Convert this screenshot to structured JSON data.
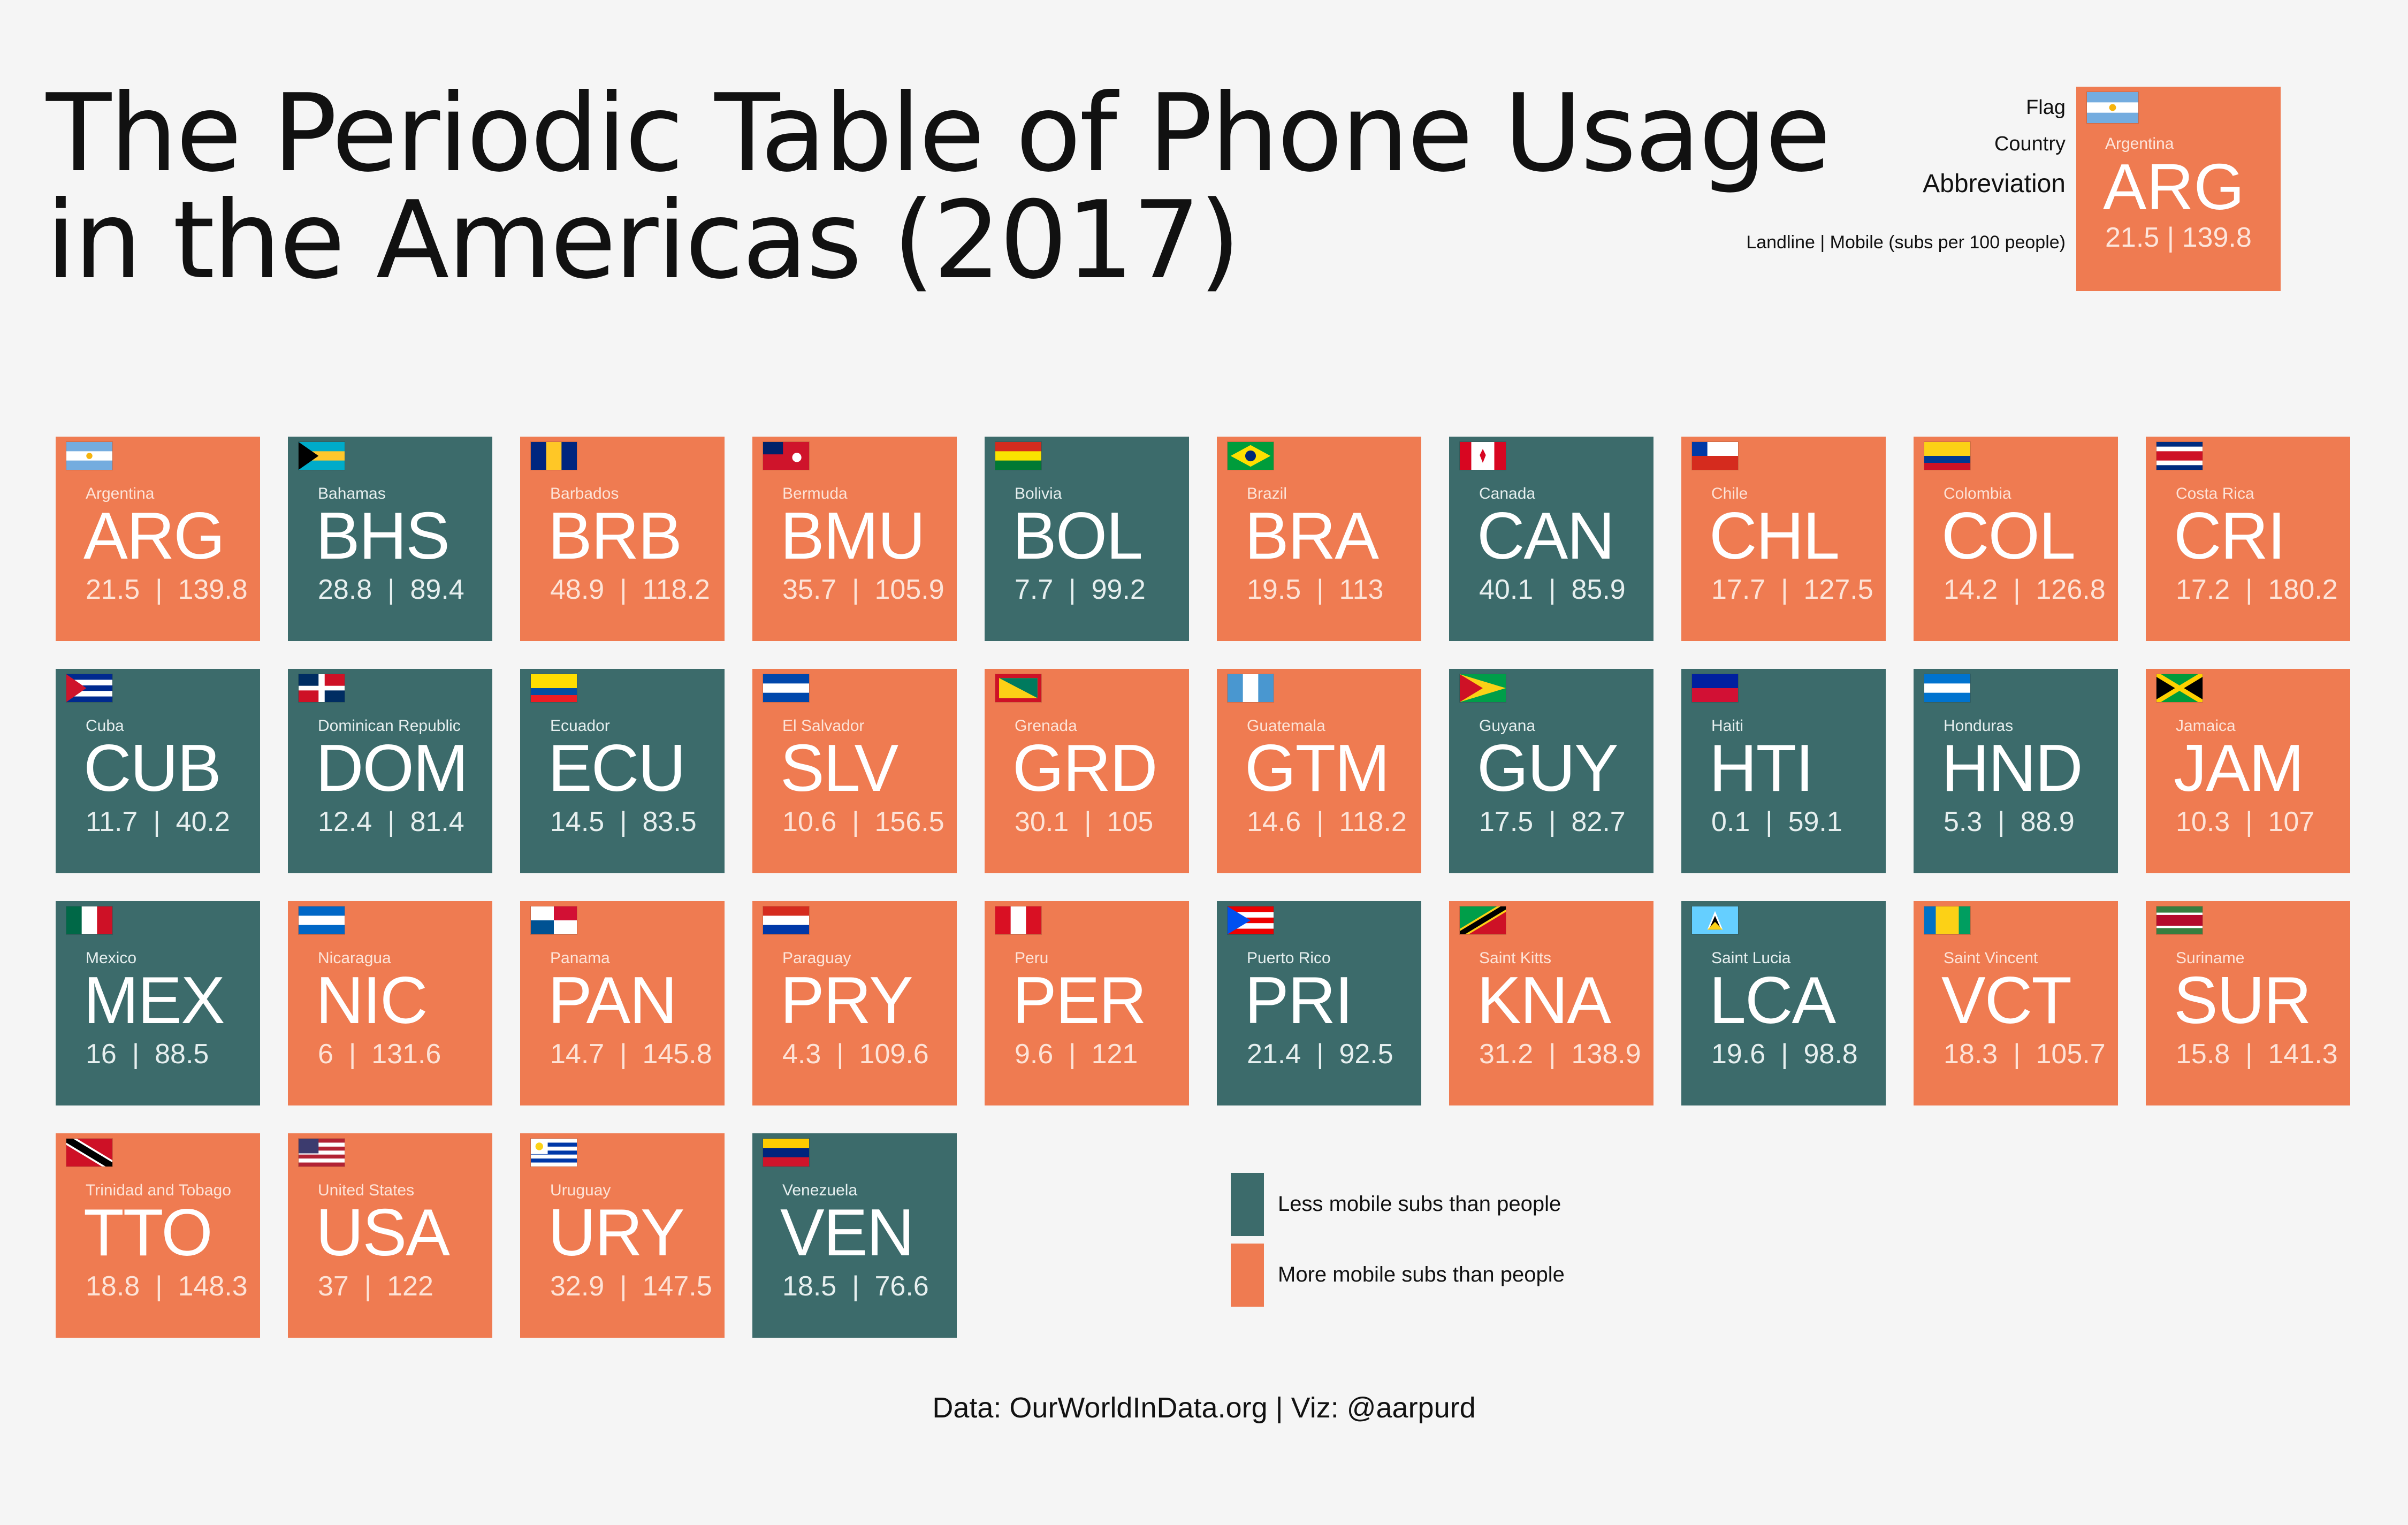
{
  "title_lines": [
    "The Periodic Table of Phone Usage",
    "in the Americas (2017)"
  ],
  "key": {
    "flag_label": "Flag",
    "country_label": "Country",
    "abbreviation_label": "Abbreviation",
    "values_label": "Landline  |  Mobile (subs per 100 people)",
    "example": {
      "country": "Argentina",
      "code": "ARG",
      "values": "21.5  |  139.8",
      "flag": "ARG"
    }
  },
  "colors": {
    "less": "#3c6b6b",
    "more": "#ef7b51",
    "background": "#f5f5f5"
  },
  "legend": [
    {
      "label": "Less mobile subs than people",
      "category": "less"
    },
    {
      "label": "More mobile subs than people",
      "category": "more"
    }
  ],
  "source": "Data: OurWorldInData.org  |  Viz: @aarpurd",
  "chart_data": {
    "type": "table",
    "title": "The Periodic Table of Phone Usage in the Americas (2017)",
    "columns": [
      "Country",
      "Abbreviation",
      "Landline (subs per 100 people)",
      "Mobile (subs per 100 people)"
    ],
    "rows": [
      {
        "country": "Argentina",
        "code": "ARG",
        "landline": 21.5,
        "mobile": 139.8
      },
      {
        "country": "Bahamas",
        "code": "BHS",
        "landline": 28.8,
        "mobile": 89.4
      },
      {
        "country": "Barbados",
        "code": "BRB",
        "landline": 48.9,
        "mobile": 118.2
      },
      {
        "country": "Bermuda",
        "code": "BMU",
        "landline": 35.7,
        "mobile": 105.9
      },
      {
        "country": "Bolivia",
        "code": "BOL",
        "landline": 7.7,
        "mobile": 99.2
      },
      {
        "country": "Brazil",
        "code": "BRA",
        "landline": 19.5,
        "mobile": 113
      },
      {
        "country": "Canada",
        "code": "CAN",
        "landline": 40.1,
        "mobile": 85.9
      },
      {
        "country": "Chile",
        "code": "CHL",
        "landline": 17.7,
        "mobile": 127.5
      },
      {
        "country": "Colombia",
        "code": "COL",
        "landline": 14.2,
        "mobile": 126.8
      },
      {
        "country": "Costa Rica",
        "code": "CRI",
        "landline": 17.2,
        "mobile": 180.2
      },
      {
        "country": "Cuba",
        "code": "CUB",
        "landline": 11.7,
        "mobile": 40.2
      },
      {
        "country": "Dominican Republic",
        "code": "DOM",
        "landline": 12.4,
        "mobile": 81.4
      },
      {
        "country": "Ecuador",
        "code": "ECU",
        "landline": 14.5,
        "mobile": 83.5
      },
      {
        "country": "El Salvador",
        "code": "SLV",
        "landline": 10.6,
        "mobile": 156.5
      },
      {
        "country": "Grenada",
        "code": "GRD",
        "landline": 30.1,
        "mobile": 105
      },
      {
        "country": "Guatemala",
        "code": "GTM",
        "landline": 14.6,
        "mobile": 118.2
      },
      {
        "country": "Guyana",
        "code": "GUY",
        "landline": 17.5,
        "mobile": 82.7
      },
      {
        "country": "Haiti",
        "code": "HTI",
        "landline": 0.1,
        "mobile": 59.1
      },
      {
        "country": "Honduras",
        "code": "HND",
        "landline": 5.3,
        "mobile": 88.9
      },
      {
        "country": "Jamaica",
        "code": "JAM",
        "landline": 10.3,
        "mobile": 107
      },
      {
        "country": "Mexico",
        "code": "MEX",
        "landline": 16,
        "mobile": 88.5
      },
      {
        "country": "Nicaragua",
        "code": "NIC",
        "landline": 6,
        "mobile": 131.6
      },
      {
        "country": "Panama",
        "code": "PAN",
        "landline": 14.7,
        "mobile": 145.8
      },
      {
        "country": "Paraguay",
        "code": "PRY",
        "landline": 4.3,
        "mobile": 109.6
      },
      {
        "country": "Peru",
        "code": "PER",
        "landline": 9.6,
        "mobile": 121
      },
      {
        "country": "Puerto Rico",
        "code": "PRI",
        "landline": 21.4,
        "mobile": 92.5
      },
      {
        "country": "Saint Kitts",
        "code": "KNA",
        "landline": 31.2,
        "mobile": 138.9
      },
      {
        "country": "Saint Lucia",
        "code": "LCA",
        "landline": 19.6,
        "mobile": 98.8
      },
      {
        "country": "Saint Vincent",
        "code": "VCT",
        "landline": 18.3,
        "mobile": 105.7
      },
      {
        "country": "Suriname",
        "code": "SUR",
        "landline": 15.8,
        "mobile": 141.3
      },
      {
        "country": "Trinidad and Tobago",
        "code": "TTO",
        "landline": 18.8,
        "mobile": 148.3
      },
      {
        "country": "United States",
        "code": "USA",
        "landline": 37,
        "mobile": 122
      },
      {
        "country": "Uruguay",
        "code": "URY",
        "landline": 32.9,
        "mobile": 147.5
      },
      {
        "country": "Venezuela",
        "code": "VEN",
        "landline": 18.5,
        "mobile": 76.6
      }
    ]
  }
}
